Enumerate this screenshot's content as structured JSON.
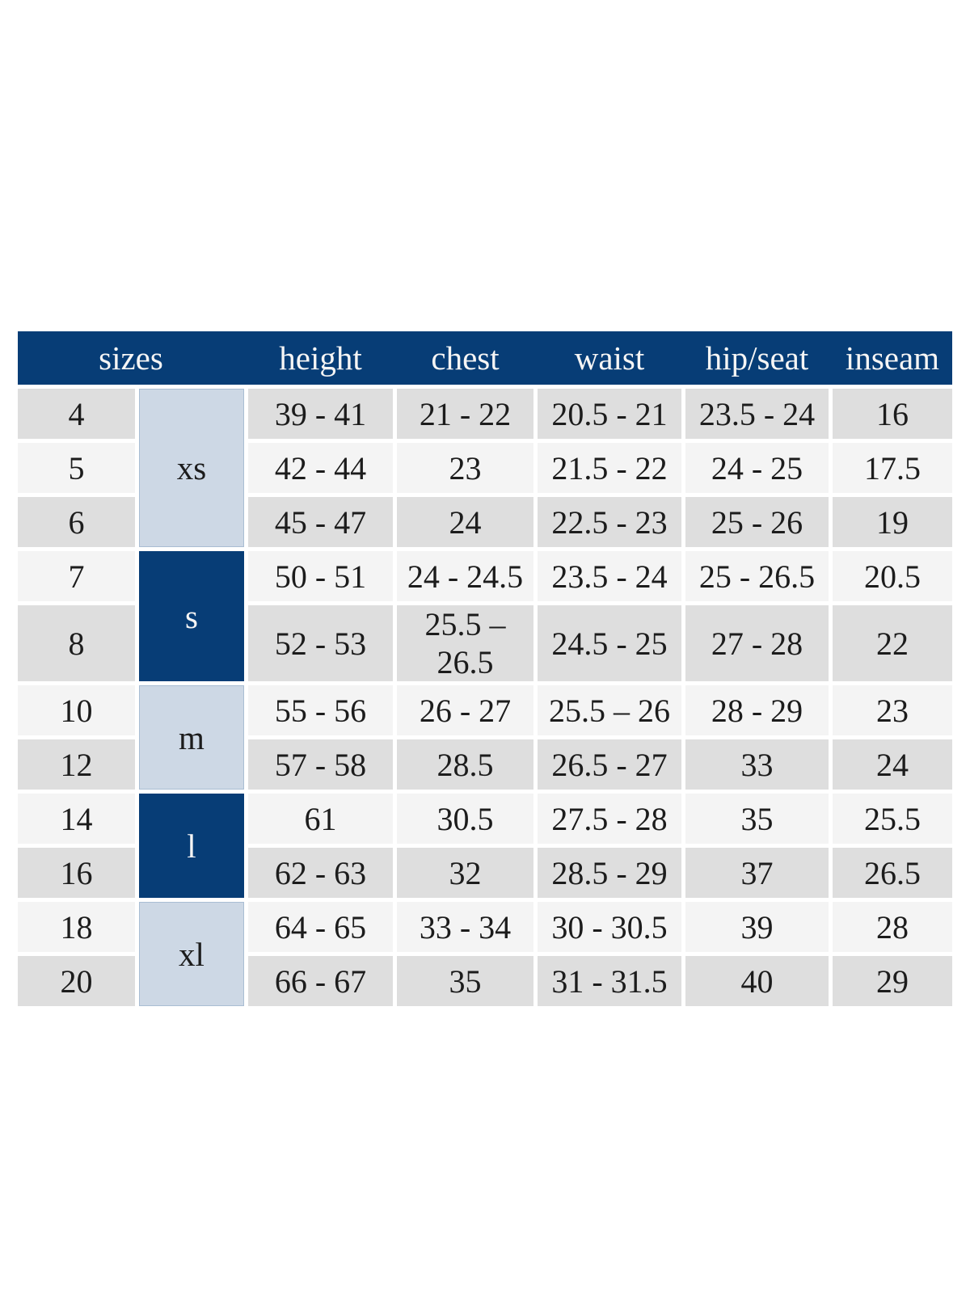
{
  "colors": {
    "page_background": "#ffffff",
    "header_bg": "#073d76",
    "header_text": "#f5f5f5",
    "group_dark_bg": "#073d76",
    "group_light_bg": "#cdd8e5",
    "group_light_border": "#a9bdd3",
    "row_gray": "#dedede",
    "row_light": "#f4f4f4",
    "cell_text": "#1c1c1c"
  },
  "table": {
    "header": {
      "sizes": "sizes",
      "height": "height",
      "chest": "chest",
      "waist": "waist",
      "hip_seat": "hip/seat",
      "inseam": "inseam"
    },
    "groups": [
      {
        "label": "xs",
        "style": "light",
        "row_span": 3
      },
      {
        "label": "s",
        "style": "dark",
        "row_span": 2
      },
      {
        "label": "m",
        "style": "light",
        "row_span": 2
      },
      {
        "label": "l",
        "style": "dark",
        "row_span": 2
      },
      {
        "label": "xl",
        "style": "light",
        "row_span": 2
      }
    ],
    "rows": [
      {
        "size": "4",
        "height": "39 - 41",
        "chest": "21 - 22",
        "waist": "20.5 - 21",
        "hip_seat": "23.5 - 24",
        "inseam": "16"
      },
      {
        "size": "5",
        "height": "42 - 44",
        "chest": "23",
        "waist": "21.5 - 22",
        "hip_seat": "24 - 25",
        "inseam": "17.5"
      },
      {
        "size": "6",
        "height": "45 - 47",
        "chest": "24",
        "waist": "22.5 - 23",
        "hip_seat": "25 - 26",
        "inseam": "19"
      },
      {
        "size": "7",
        "height": "50 - 51",
        "chest": "24 - 24.5",
        "waist": "23.5 - 24",
        "hip_seat": "25 - 26.5",
        "inseam": "20.5"
      },
      {
        "size": "8",
        "height": "52 - 53",
        "chest": "25.5 – 26.5",
        "waist": "24.5 - 25",
        "hip_seat": "27 - 28",
        "inseam": "22"
      },
      {
        "size": "10",
        "height": "55 - 56",
        "chest": "26 - 27",
        "waist": "25.5 – 26",
        "hip_seat": "28 - 29",
        "inseam": "23"
      },
      {
        "size": "12",
        "height": "57 - 58",
        "chest": "28.5",
        "waist": "26.5 - 27",
        "hip_seat": "33",
        "inseam": "24"
      },
      {
        "size": "14",
        "height": "61",
        "chest": "30.5",
        "waist": "27.5 - 28",
        "hip_seat": "35",
        "inseam": "25.5"
      },
      {
        "size": "16",
        "height": "62 - 63",
        "chest": "32",
        "waist": "28.5 - 29",
        "hip_seat": "37",
        "inseam": "26.5"
      },
      {
        "size": "18",
        "height": "64 - 65",
        "chest": "33 - 34",
        "waist": "30 - 30.5",
        "hip_seat": "39",
        "inseam": "28"
      },
      {
        "size": "20",
        "height": "66 - 67",
        "chest": "35",
        "waist": "31 - 31.5",
        "hip_seat": "40",
        "inseam": "29"
      }
    ]
  }
}
